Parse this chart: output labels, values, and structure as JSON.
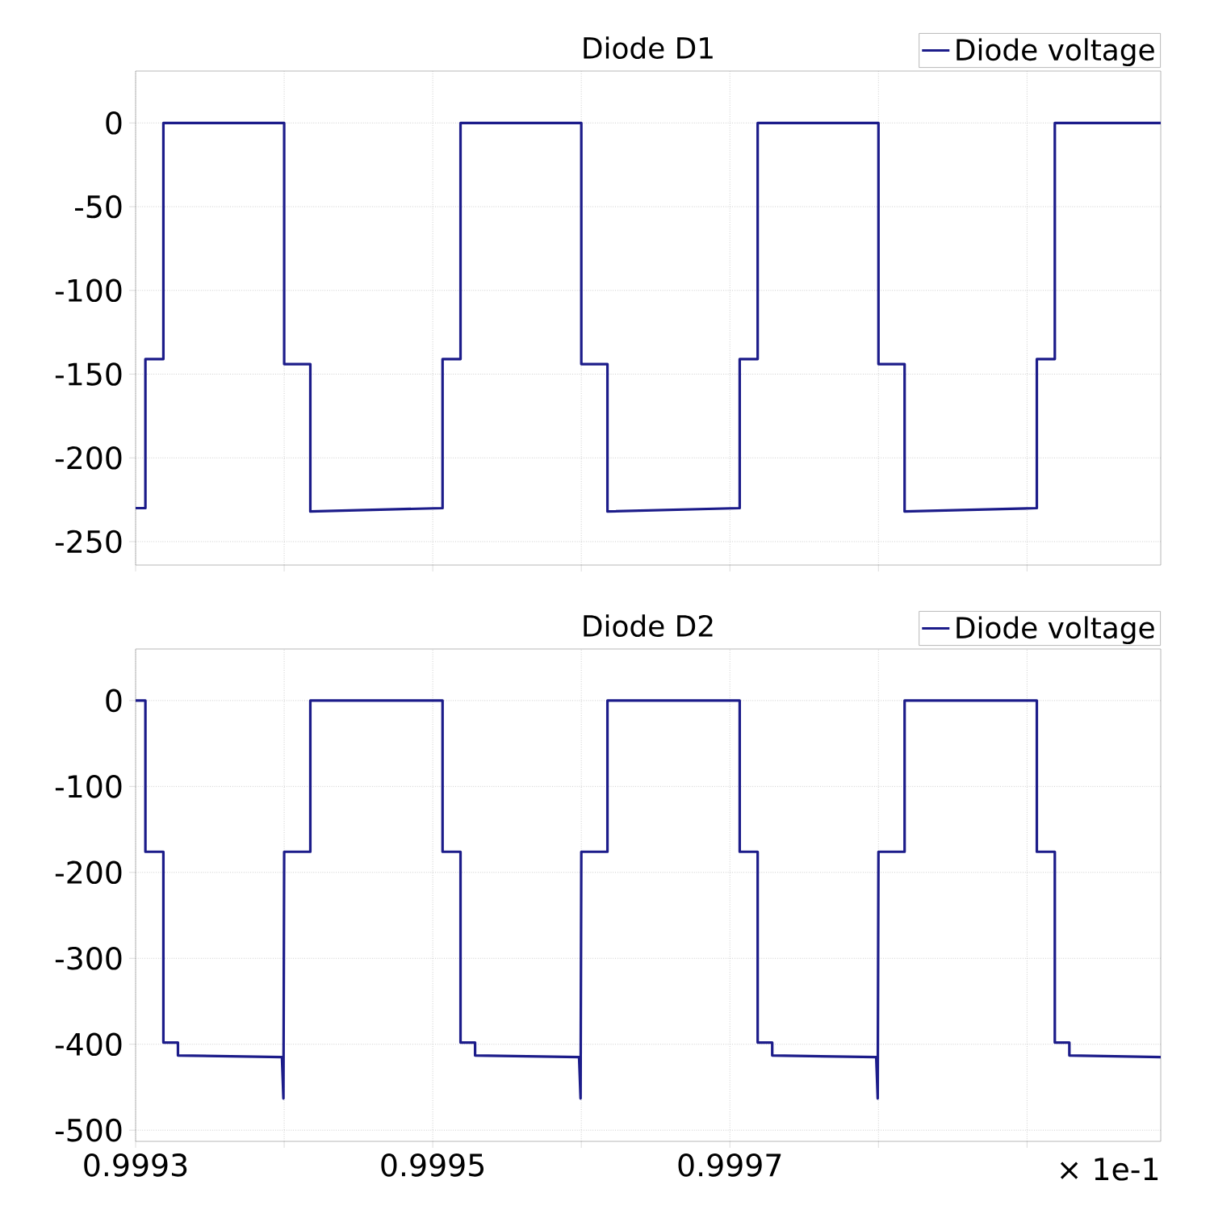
{
  "chart_data": [
    {
      "type": "line",
      "title": "Diode D1",
      "xlim": [
        0.9993,
        0.99999
      ],
      "ylim": [
        -264,
        31
      ],
      "xticks": [
        0.9993,
        {
          "value": 0.9994,
          "label": null
        },
        0.9995,
        {
          "value": 0.9996,
          "label": null
        },
        0.9997,
        {
          "value": 0.9998,
          "label": null
        },
        {
          "value": 0.9999,
          "label": null
        }
      ],
      "yticks": [
        0,
        -50,
        -100,
        -150,
        -200,
        -250
      ],
      "tick_labels": "y",
      "grid": true,
      "legend": "top right",
      "marker": "none",
      "line_style": "solid",
      "series": [
        {
          "name": "Diode voltage",
          "color": "#1c1c8a",
          "x": [
            0.9993,
            0.9993066,
            0.9993066,
            0.9993187,
            0.9993187,
            0.9994,
            0.9994,
            0.9994176,
            0.9994176,
            0.9995066,
            0.9995066,
            0.9995187,
            0.9995187,
            0.9996,
            0.9996,
            0.9996176,
            0.9996176,
            0.9997066,
            0.9997066,
            0.9997187,
            0.9997187,
            0.9998,
            0.9998,
            0.9998176,
            0.9998176,
            0.9999066,
            0.9999066,
            0.9999187,
            0.9999187,
            0.99999
          ],
          "values": [
            -230,
            -230,
            -141,
            -141,
            0,
            0,
            -144,
            -144,
            -232,
            -230,
            -141,
            -141,
            0,
            0,
            -144,
            -144,
            -232,
            -230,
            -141,
            -141,
            0,
            0,
            -144,
            -144,
            -232,
            -230,
            -141,
            -141,
            0,
            0
          ]
        }
      ]
    },
    {
      "type": "line",
      "title": "Diode D2",
      "xlim": [
        0.9993,
        0.99999
      ],
      "ylim": [
        -513,
        60
      ],
      "xticks": [
        0.9993,
        {
          "value": 0.9994,
          "label": null
        },
        0.9995,
        {
          "value": 0.9996,
          "label": null
        },
        0.9997,
        {
          "value": 0.9998,
          "label": null
        },
        {
          "value": 0.9999,
          "label": null
        }
      ],
      "yticks": [
        0,
        -100,
        -200,
        -300,
        -400,
        -500
      ],
      "grid": true,
      "legend": "top right",
      "marker": "none",
      "line_style": "solid",
      "annotations": [
        "× 1e-1"
      ],
      "series": [
        {
          "name": "Diode voltage",
          "color": "#1c1c8a",
          "x": [
            0.9993,
            0.9993066,
            0.9993066,
            0.9993187,
            0.9993187,
            0.9993285,
            0.9993285,
            0.9993985,
            0.9993995,
            0.9994,
            0.9994176,
            0.9994176,
            0.9995066,
            0.9995066,
            0.9995187,
            0.9995187,
            0.9995285,
            0.9995285,
            0.9995985,
            0.9995995,
            0.9996,
            0.9996176,
            0.9996176,
            0.9997066,
            0.9997066,
            0.9997187,
            0.9997187,
            0.9997285,
            0.9997285,
            0.9997985,
            0.9997995,
            0.9998,
            0.9998176,
            0.9998176,
            0.9999066,
            0.9999066,
            0.9999187,
            0.9999187,
            0.9999285,
            0.9999285,
            0.99999
          ],
          "values": [
            0,
            0,
            -176,
            -176,
            -398,
            -398,
            -413,
            -415,
            -463,
            -176,
            -176,
            0,
            0,
            -176,
            -176,
            -398,
            -398,
            -413,
            -415,
            -463,
            -176,
            -176,
            0,
            0,
            -176,
            -176,
            -398,
            -398,
            -413,
            -415,
            -463,
            -176,
            -176,
            0,
            0,
            -176,
            -176,
            -398,
            -398,
            -413,
            -415
          ]
        }
      ]
    }
  ]
}
